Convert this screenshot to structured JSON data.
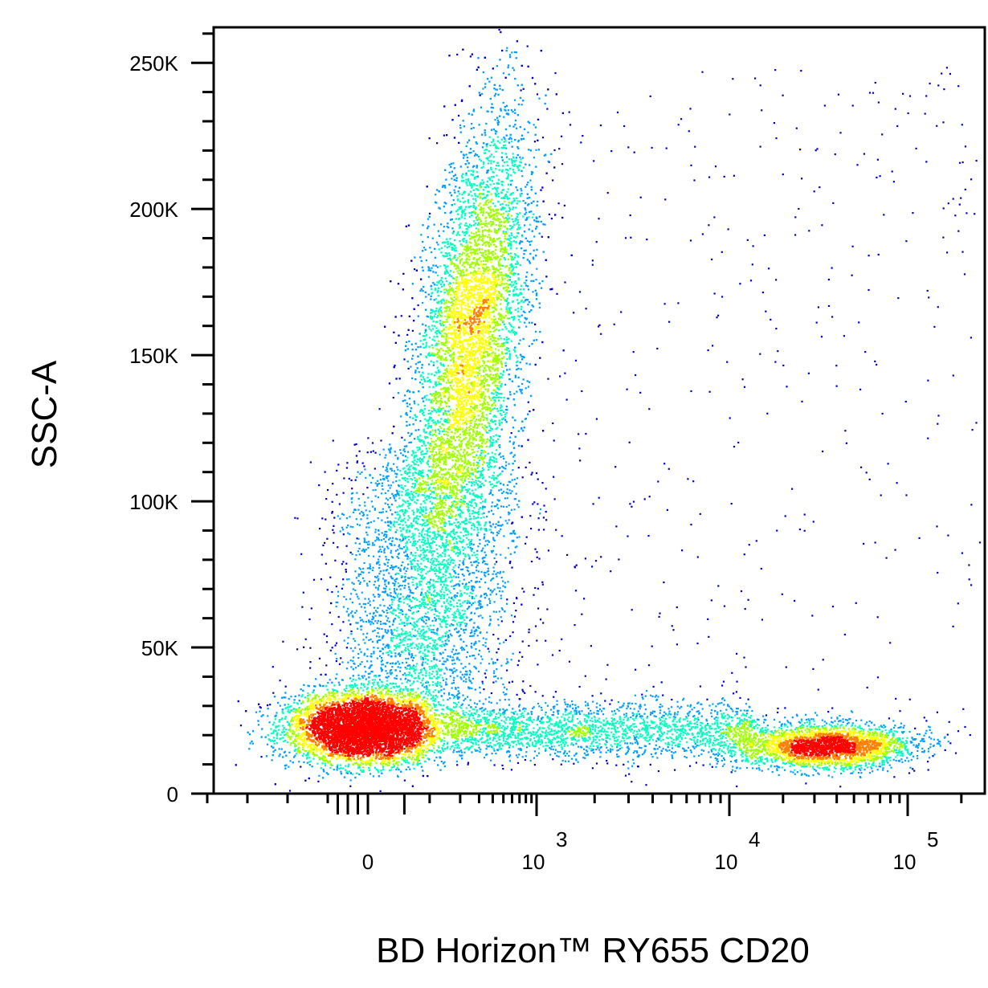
{
  "chart_data": {
    "type": "scatter",
    "title": "",
    "xlabel": "BD Horizon™ RY655 CD20",
    "ylabel": "SSC-A",
    "x_scale": "biexponential",
    "x_tick_labels": [
      {
        "value": 0,
        "base": "0",
        "exp": ""
      },
      {
        "value": 1000,
        "base": "10",
        "exp": "3"
      },
      {
        "value": 10000,
        "base": "10",
        "exp": "4"
      },
      {
        "value": 100000,
        "base": "10",
        "exp": "5"
      }
    ],
    "y_ticks": [
      {
        "value": 0,
        "label": "0"
      },
      {
        "value": 50000,
        "label": "50K"
      },
      {
        "value": 100000,
        "label": "100K"
      },
      {
        "value": 150000,
        "label": "150K"
      },
      {
        "value": 200000,
        "label": "200K"
      },
      {
        "value": 250000,
        "label": "250K"
      }
    ],
    "ylim": [
      0,
      262144
    ],
    "grid": false,
    "legend": "none",
    "density_colormap": [
      "#0000c8",
      "#00a0ff",
      "#00ffc0",
      "#a0ff00",
      "#ffff00",
      "#ff8000",
      "#ff0000"
    ],
    "populations": [
      {
        "x_center": 0,
        "y_center": 22000,
        "x_spread": "narrow",
        "y_spread": 7000,
        "relative_size": 0.38
      },
      {
        "x_center": 300,
        "y_center": 160000,
        "x_spread": "narrow",
        "y_spread": 35000,
        "relative_size": 0.36
      },
      {
        "x_center": 25000,
        "y_center": 16000,
        "x_spread": "narrow",
        "y_spread": 5000,
        "relative_size": 0.12
      },
      {
        "x_center": 1500,
        "y_center": 20000,
        "x_spread": "wide",
        "y_spread": 6000,
        "relative_size": 0.06
      }
    ]
  }
}
